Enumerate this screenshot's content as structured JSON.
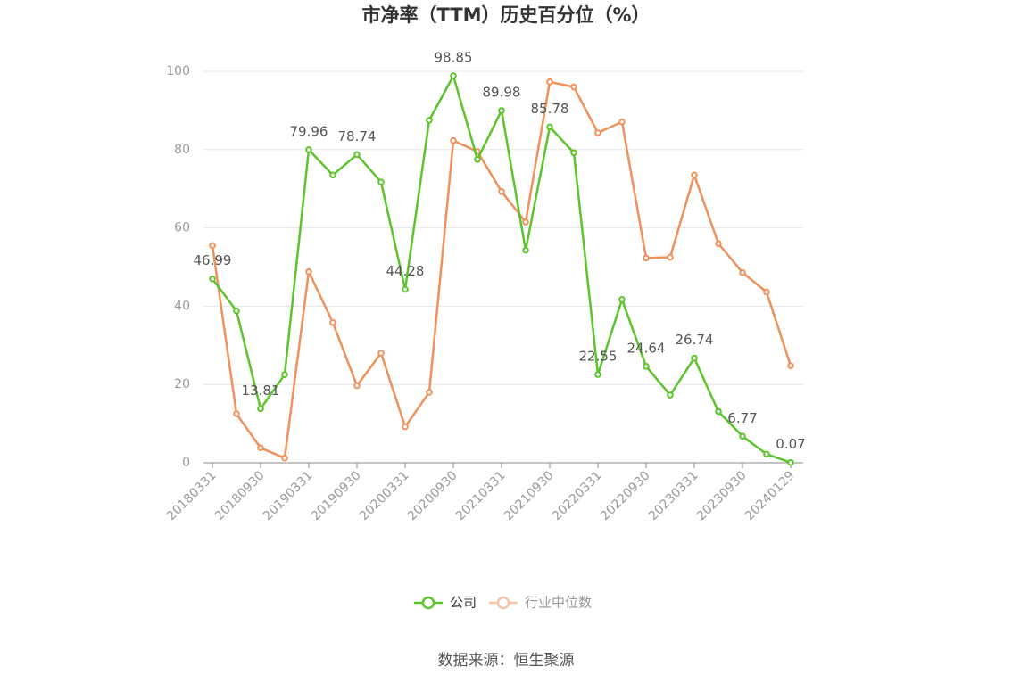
{
  "chart_data": {
    "type": "line",
    "title": "市净率（TTM）历史百分位（%）",
    "categories": [
      "20180331",
      null,
      "20180930",
      null,
      "20190331",
      null,
      "20190930",
      null,
      "20200331",
      null,
      "20200930",
      null,
      "20210331",
      null,
      "20210930",
      null,
      "20220331",
      null,
      "20220930",
      null,
      "20230331",
      null,
      "20230930",
      null,
      "20240129"
    ],
    "series": [
      {
        "name": "公司",
        "color": "#5cc42b",
        "values": [
          46.99,
          38.8,
          13.81,
          22.5,
          79.96,
          73.5,
          78.74,
          71.7,
          44.28,
          87.5,
          98.85,
          77.5,
          89.98,
          54.3,
          85.78,
          79.2,
          22.55,
          41.7,
          24.64,
          17.3,
          26.74,
          13.1,
          6.77,
          2.2,
          0.07
        ],
        "value_labels": [
          "46.99",
          null,
          "13.81",
          null,
          "79.96",
          null,
          "78.74",
          null,
          "44.28",
          null,
          "98.85",
          null,
          "89.98",
          null,
          "85.78",
          null,
          "22.55",
          null,
          "24.64",
          null,
          "26.74",
          null,
          "6.77",
          null,
          "0.07"
        ]
      },
      {
        "name": "行业中位数",
        "color": "#f0905a",
        "values": [
          55.5,
          12.5,
          3.8,
          1.2,
          48.8,
          35.8,
          19.7,
          28,
          9.2,
          18,
          82.3,
          79.5,
          69.3,
          61.5,
          97.3,
          96,
          84.3,
          87.1,
          52.3,
          52.5,
          73.5,
          56,
          48.6,
          43.6,
          24.8
        ]
      }
    ],
    "ylim": [
      0,
      100
    ],
    "yticks": [
      0,
      20,
      40,
      60,
      80,
      100
    ],
    "grid": true,
    "legend": "bottom",
    "source": "数据来源：恒生聚源"
  }
}
